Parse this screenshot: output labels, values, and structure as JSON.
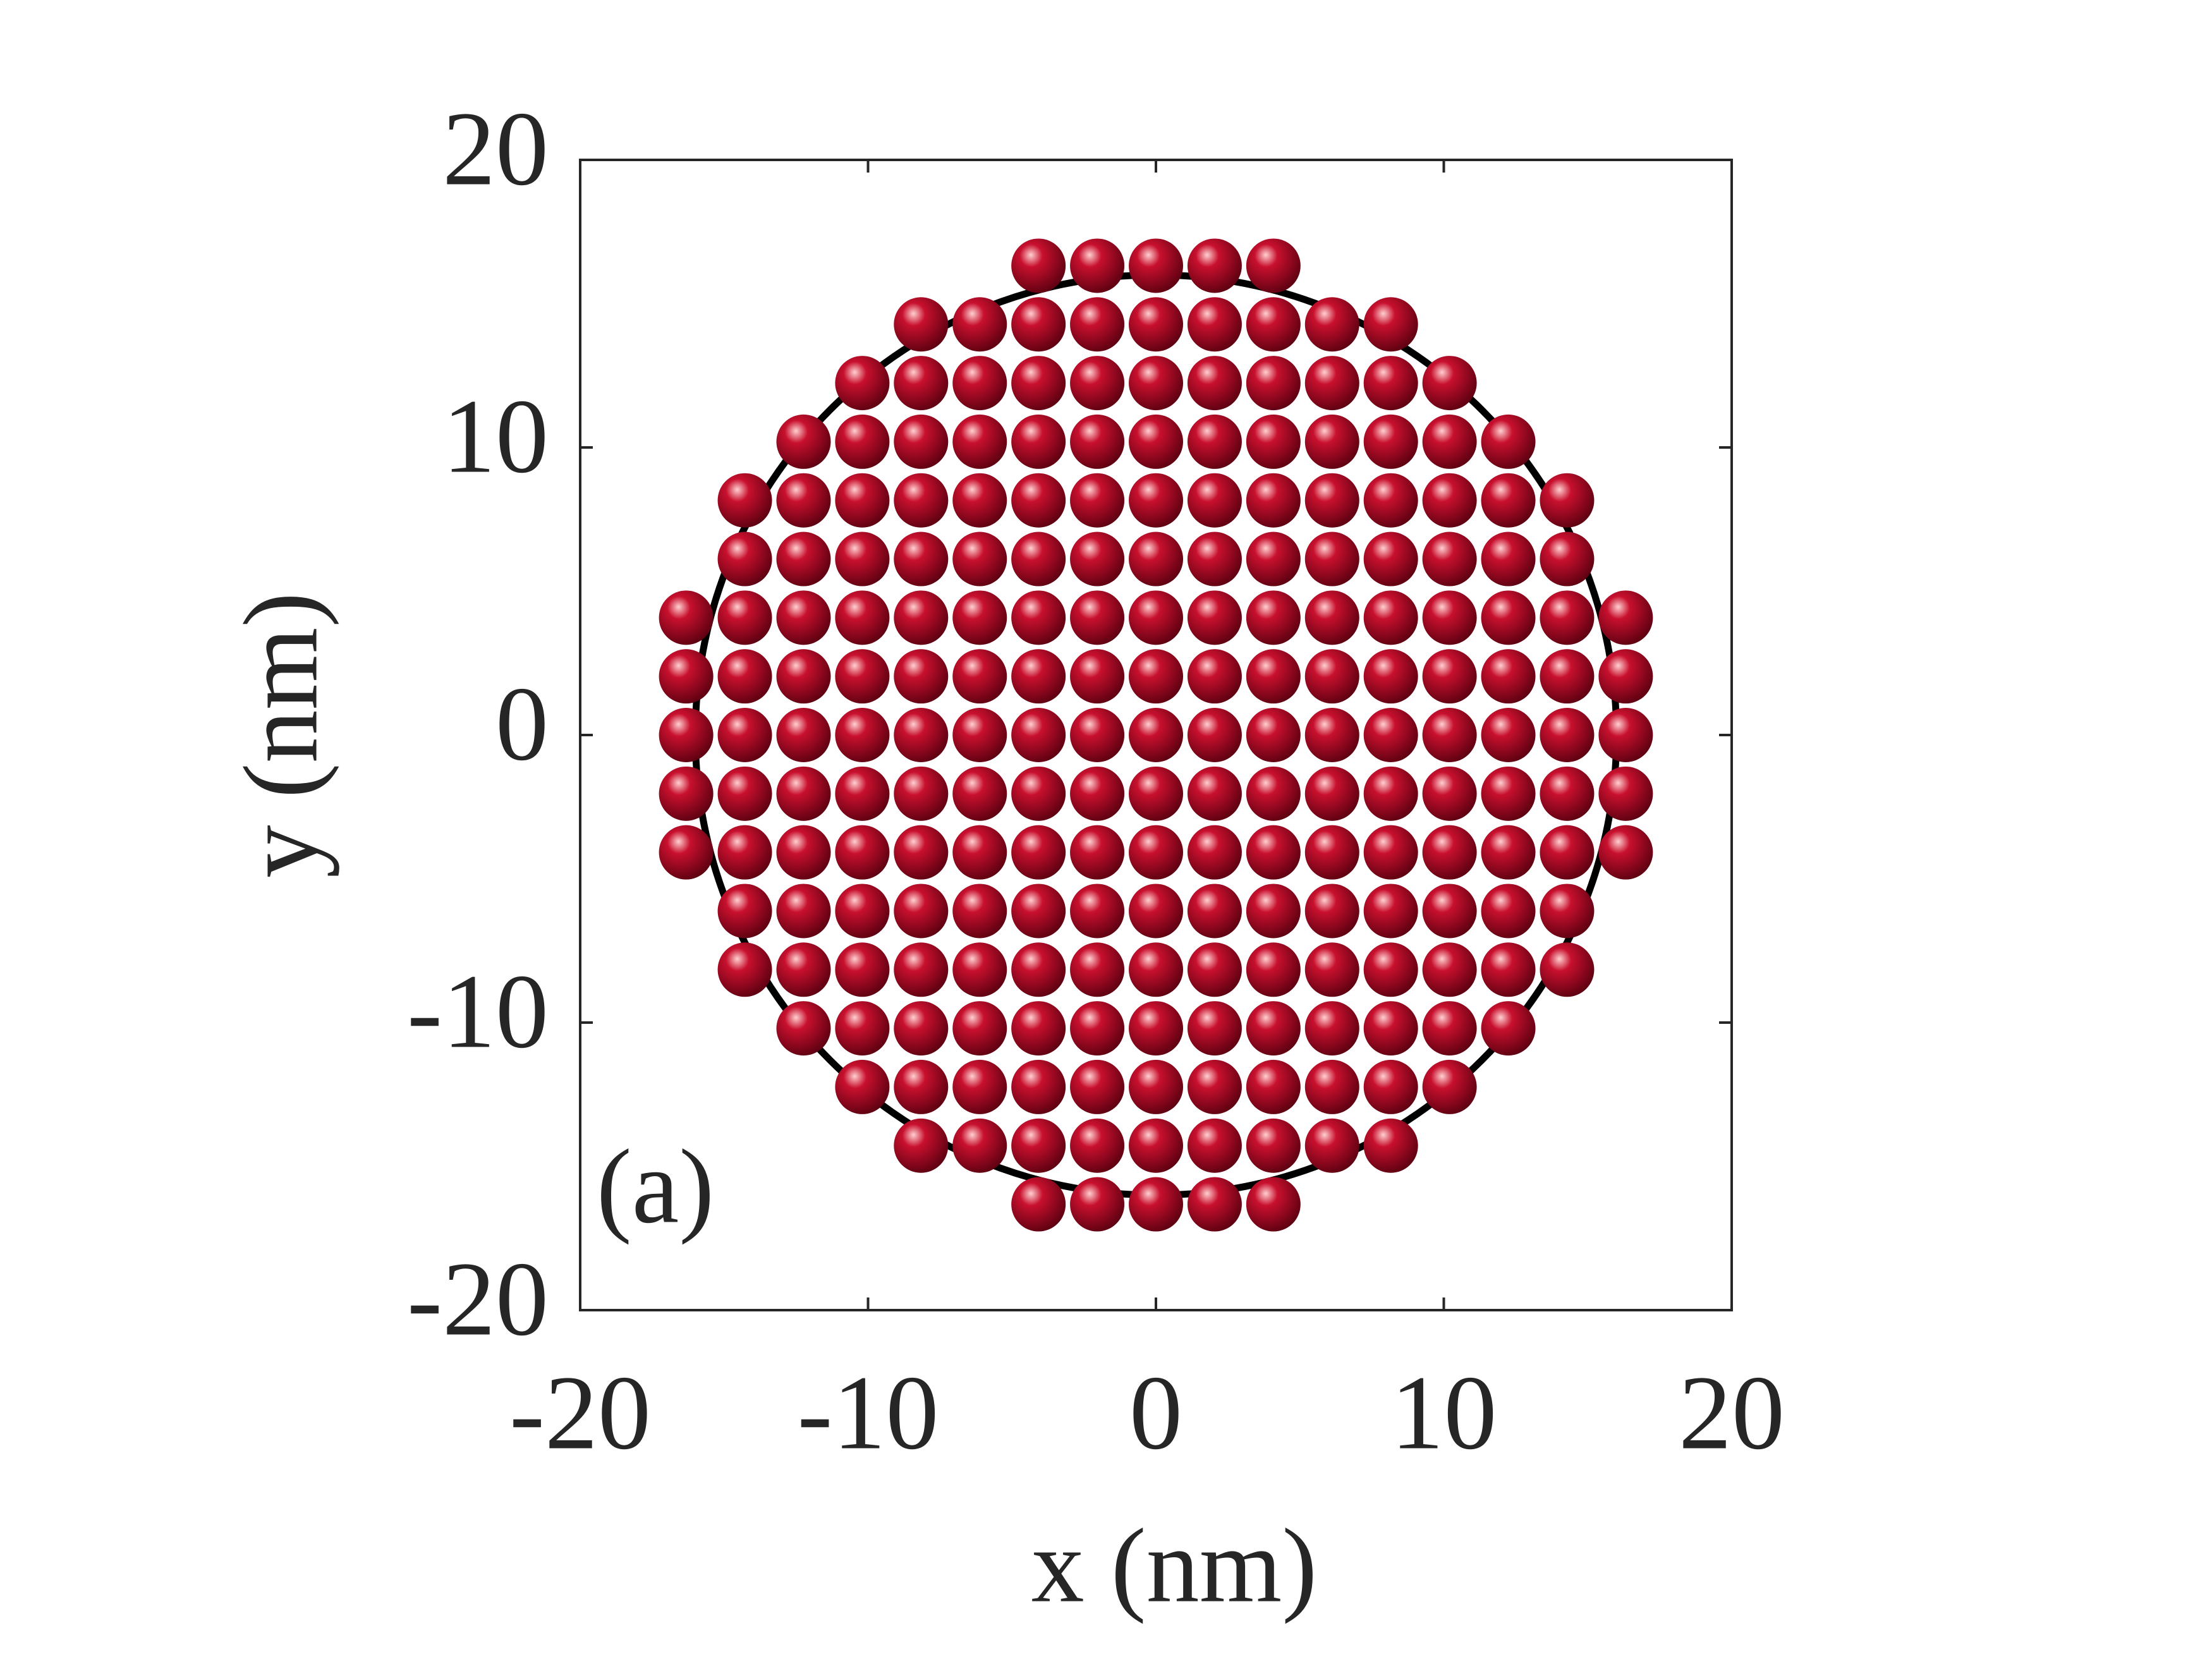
{
  "chart_data": {
    "type": "scatter",
    "xlabel": "x (nm)",
    "ylabel": "y (nm)",
    "annotation": "(a)",
    "xlim": [
      -20,
      20
    ],
    "ylim": [
      -20,
      20
    ],
    "xticks": [
      -20,
      -10,
      0,
      10,
      20
    ],
    "yticks": [
      -20,
      -10,
      0,
      10,
      20
    ],
    "grid": false,
    "color": "#c8102e",
    "circle": {
      "cx": 0,
      "cy": 0,
      "r": 16,
      "color": "#000000"
    },
    "x": [
      -4.08,
      -2.04,
      0,
      2.04,
      4.08,
      -8.16,
      -6.12,
      -4.08,
      -2.04,
      0,
      2.04,
      4.08,
      6.12,
      8.16,
      -10.2,
      -8.16,
      -6.12,
      -4.08,
      -2.04,
      0,
      2.04,
      4.08,
      6.12,
      8.16,
      10.2,
      -12.24,
      -10.2,
      -8.16,
      -6.12,
      -4.08,
      -2.04,
      0,
      2.04,
      4.08,
      6.12,
      8.16,
      10.2,
      12.24,
      -14.28,
      -12.24,
      -10.2,
      -8.16,
      -6.12,
      -4.08,
      -2.04,
      0,
      2.04,
      4.08,
      6.12,
      8.16,
      10.2,
      12.24,
      14.28,
      -14.28,
      -12.24,
      -10.2,
      -8.16,
      -6.12,
      -4.08,
      -2.04,
      0,
      2.04,
      4.08,
      6.12,
      8.16,
      10.2,
      12.24,
      14.28,
      -16.32,
      -14.28,
      -12.24,
      -10.2,
      -8.16,
      -6.12,
      -4.08,
      -2.04,
      0,
      2.04,
      4.08,
      6.12,
      8.16,
      10.2,
      12.24,
      14.28,
      16.32,
      -16.32,
      -14.28,
      -12.24,
      -10.2,
      -8.16,
      -6.12,
      -4.08,
      -2.04,
      0,
      2.04,
      4.08,
      6.12,
      8.16,
      10.2,
      12.24,
      14.28,
      16.32,
      -16.32,
      -14.28,
      -12.24,
      -10.2,
      -8.16,
      -6.12,
      -4.08,
      -2.04,
      0,
      2.04,
      4.08,
      6.12,
      8.16,
      10.2,
      12.24,
      14.28,
      16.32,
      -16.32,
      -14.28,
      -12.24,
      -10.2,
      -8.16,
      -6.12,
      -4.08,
      -2.04,
      0,
      2.04,
      4.08,
      6.12,
      8.16,
      10.2,
      12.24,
      14.28,
      16.32,
      -16.32,
      -14.28,
      -12.24,
      -10.2,
      -8.16,
      -6.12,
      -4.08,
      -2.04,
      0,
      2.04,
      4.08,
      6.12,
      8.16,
      10.2,
      12.24,
      14.28,
      16.32,
      -14.28,
      -12.24,
      -10.2,
      -8.16,
      -6.12,
      -4.08,
      -2.04,
      0,
      2.04,
      4.08,
      6.12,
      8.16,
      10.2,
      12.24,
      14.28,
      -14.28,
      -12.24,
      -10.2,
      -8.16,
      -6.12,
      -4.08,
      -2.04,
      0,
      2.04,
      4.08,
      6.12,
      8.16,
      10.2,
      12.24,
      14.28,
      -12.24,
      -10.2,
      -8.16,
      -6.12,
      -4.08,
      -2.04,
      0,
      2.04,
      4.08,
      6.12,
      8.16,
      10.2,
      12.24,
      -10.2,
      -8.16,
      -6.12,
      -4.08,
      -2.04,
      0,
      2.04,
      4.08,
      6.12,
      8.16,
      10.2,
      -8.16,
      -6.12,
      -4.08,
      -2.04,
      0,
      2.04,
      4.08,
      6.12,
      8.16,
      -4.08,
      -2.04,
      0,
      2.04,
      4.08
    ],
    "values": [
      16.32,
      16.32,
      16.32,
      16.32,
      16.32,
      14.28,
      14.28,
      14.28,
      14.28,
      14.28,
      14.28,
      14.28,
      14.28,
      14.28,
      12.24,
      12.24,
      12.24,
      12.24,
      12.24,
      12.24,
      12.24,
      12.24,
      12.24,
      12.24,
      12.24,
      10.2,
      10.2,
      10.2,
      10.2,
      10.2,
      10.2,
      10.2,
      10.2,
      10.2,
      10.2,
      10.2,
      10.2,
      10.2,
      8.16,
      8.16,
      8.16,
      8.16,
      8.16,
      8.16,
      8.16,
      8.16,
      8.16,
      8.16,
      8.16,
      8.16,
      8.16,
      8.16,
      8.16,
      6.12,
      6.12,
      6.12,
      6.12,
      6.12,
      6.12,
      6.12,
      6.12,
      6.12,
      6.12,
      6.12,
      6.12,
      6.12,
      6.12,
      6.12,
      4.08,
      4.08,
      4.08,
      4.08,
      4.08,
      4.08,
      4.08,
      4.08,
      4.08,
      4.08,
      4.08,
      4.08,
      4.08,
      4.08,
      4.08,
      4.08,
      4.08,
      2.04,
      2.04,
      2.04,
      2.04,
      2.04,
      2.04,
      2.04,
      2.04,
      2.04,
      2.04,
      2.04,
      2.04,
      2.04,
      2.04,
      2.04,
      2.04,
      2.04,
      0,
      0,
      0,
      0,
      0,
      0,
      0,
      0,
      0,
      0,
      0,
      0,
      0,
      0,
      0,
      0,
      0,
      -2.04,
      -2.04,
      -2.04,
      -2.04,
      -2.04,
      -2.04,
      -2.04,
      -2.04,
      -2.04,
      -2.04,
      -2.04,
      -2.04,
      -2.04,
      -2.04,
      -2.04,
      -2.04,
      -2.04,
      -4.08,
      -4.08,
      -4.08,
      -4.08,
      -4.08,
      -4.08,
      -4.08,
      -4.08,
      -4.08,
      -4.08,
      -4.08,
      -4.08,
      -4.08,
      -4.08,
      -4.08,
      -4.08,
      -4.08,
      -6.12,
      -6.12,
      -6.12,
      -6.12,
      -6.12,
      -6.12,
      -6.12,
      -6.12,
      -6.12,
      -6.12,
      -6.12,
      -6.12,
      -6.12,
      -6.12,
      -6.12,
      -8.16,
      -8.16,
      -8.16,
      -8.16,
      -8.16,
      -8.16,
      -8.16,
      -8.16,
      -8.16,
      -8.16,
      -8.16,
      -8.16,
      -8.16,
      -8.16,
      -8.16,
      -10.2,
      -10.2,
      -10.2,
      -10.2,
      -10.2,
      -10.2,
      -10.2,
      -10.2,
      -10.2,
      -10.2,
      -10.2,
      -10.2,
      -10.2,
      -12.24,
      -12.24,
      -12.24,
      -12.24,
      -12.24,
      -12.24,
      -12.24,
      -12.24,
      -12.24,
      -12.24,
      -12.24,
      -14.28,
      -14.28,
      -14.28,
      -14.28,
      -14.28,
      -14.28,
      -14.28,
      -14.28,
      -14.28,
      -16.32,
      -16.32,
      -16.32,
      -16.32,
      -16.32
    ]
  }
}
